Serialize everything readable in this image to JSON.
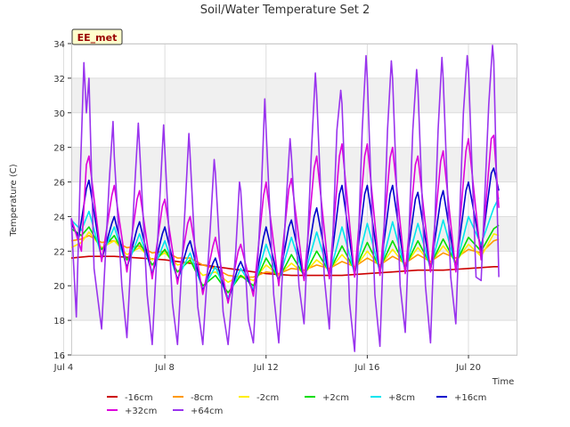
{
  "chart_data": {
    "type": "line",
    "title": "Soil/Water Temperature Set 2",
    "xlabel": "Time",
    "ylabel": "Temperature (C)",
    "station_label": "EE_met",
    "xlim": [
      4.3,
      21.9
    ],
    "ylim": [
      16,
      34
    ],
    "x_ticks": [
      {
        "value": 4,
        "label": "Jul 4"
      },
      {
        "value": 8,
        "label": "Jul 8"
      },
      {
        "value": 12,
        "label": "Jul 12"
      },
      {
        "value": 16,
        "label": "Jul 16"
      },
      {
        "value": 20,
        "label": "Jul 20"
      }
    ],
    "y_ticks": [
      16,
      18,
      20,
      22,
      24,
      26,
      28,
      30,
      32,
      34
    ],
    "grid": true,
    "legend_position": "bottom",
    "series": [
      {
        "name": "-16cm",
        "color": "#cc0000",
        "x": [
          4.3,
          5,
          6,
          7,
          8,
          9,
          10,
          11,
          12,
          13,
          14,
          15,
          16,
          17,
          18,
          19,
          20,
          21,
          21.2
        ],
        "y": [
          21.6,
          21.7,
          21.7,
          21.6,
          21.5,
          21.3,
          21.1,
          20.9,
          20.7,
          20.6,
          20.6,
          20.6,
          20.7,
          20.8,
          20.9,
          20.9,
          21.0,
          21.1,
          21.1
        ]
      },
      {
        "name": "-8cm",
        "color": "#ff9900",
        "x": [
          4.3,
          4.7,
          5.0,
          5.5,
          6.0,
          6.5,
          7.0,
          7.5,
          8.0,
          8.5,
          9.0,
          9.5,
          10.0,
          10.5,
          11.0,
          11.5,
          12.0,
          12.5,
          13.0,
          13.5,
          14.0,
          14.5,
          15.0,
          15.5,
          16.0,
          16.5,
          17.0,
          17.5,
          18.0,
          18.5,
          19.0,
          19.5,
          20.0,
          20.5,
          21.0,
          21.2
        ],
        "y": [
          22.6,
          22.7,
          22.9,
          22.5,
          22.6,
          22.2,
          22.3,
          21.9,
          22.0,
          21.6,
          21.6,
          21.2,
          21.0,
          20.6,
          20.5,
          20.5,
          20.8,
          20.7,
          21.0,
          20.9,
          21.2,
          21.0,
          21.4,
          21.1,
          21.6,
          21.2,
          21.7,
          21.3,
          21.8,
          21.4,
          21.9,
          21.6,
          22.1,
          21.9,
          22.6,
          22.7
        ]
      },
      {
        "name": "-2cm",
        "color": "#ffee00",
        "x": [
          4.3,
          4.7,
          5.0,
          5.5,
          6.0,
          6.5,
          7.0,
          7.5,
          8.0,
          8.5,
          9.0,
          9.5,
          10.0,
          10.5,
          11.0,
          11.5,
          12.0,
          12.5,
          13.0,
          13.5,
          14.0,
          14.5,
          15.0,
          15.5,
          16.0,
          16.5,
          17.0,
          17.5,
          18.0,
          18.5,
          19.0,
          19.5,
          20.0,
          20.5,
          21.0,
          21.2
        ],
        "y": [
          22.2,
          22.5,
          23.1,
          22.2,
          22.6,
          21.8,
          22.2,
          21.5,
          21.9,
          21.2,
          21.4,
          20.6,
          20.8,
          20.2,
          20.6,
          20.3,
          21.2,
          20.6,
          21.3,
          20.7,
          21.5,
          20.9,
          21.8,
          21.0,
          22.0,
          21.1,
          22.1,
          21.2,
          22.2,
          21.3,
          22.3,
          21.4,
          22.4,
          21.7,
          23.0,
          22.9
        ]
      },
      {
        "name": "+2cm",
        "color": "#00dd00",
        "x": [
          4.3,
          4.7,
          5.0,
          5.5,
          6.0,
          6.5,
          7.0,
          7.5,
          8.0,
          8.5,
          9.0,
          9.5,
          10.0,
          10.5,
          11.0,
          11.5,
          12.0,
          12.5,
          13.0,
          13.5,
          14.0,
          14.5,
          15.0,
          15.5,
          16.0,
          16.5,
          17.0,
          17.5,
          18.0,
          18.5,
          19.0,
          19.5,
          20.0,
          20.5,
          21.0,
          21.2
        ],
        "y": [
          23.3,
          22.9,
          23.4,
          22.1,
          22.9,
          21.5,
          22.5,
          21.2,
          22.1,
          20.8,
          21.5,
          20.0,
          20.6,
          19.6,
          20.6,
          20.0,
          21.6,
          20.4,
          21.8,
          20.6,
          22.0,
          20.8,
          22.3,
          20.9,
          22.5,
          21.0,
          22.6,
          21.1,
          22.6,
          21.2,
          22.7,
          21.3,
          22.8,
          22.0,
          23.3,
          23.5
        ]
      },
      {
        "name": "+8cm",
        "color": "#00e5ee",
        "x": [
          4.3,
          4.7,
          5.0,
          5.5,
          6.0,
          6.5,
          7.0,
          7.5,
          8.0,
          8.5,
          9.0,
          9.5,
          10.0,
          10.5,
          11.0,
          11.5,
          12.0,
          12.5,
          13.0,
          13.5,
          14.0,
          14.5,
          15.0,
          15.5,
          16.0,
          16.5,
          17.0,
          17.5,
          18.0,
          18.5,
          19.0,
          19.5,
          20.0,
          20.5,
          21.0,
          21.2
        ],
        "y": [
          23.8,
          23.2,
          24.3,
          21.7,
          23.4,
          21.1,
          23.0,
          20.8,
          22.6,
          20.4,
          21.9,
          19.8,
          21.1,
          19.3,
          21.0,
          19.8,
          22.4,
          20.3,
          22.8,
          20.5,
          23.1,
          20.6,
          23.4,
          20.7,
          23.6,
          20.8,
          23.7,
          20.9,
          23.6,
          21.0,
          23.8,
          21.1,
          24.0,
          22.4,
          24.5,
          25.1
        ]
      },
      {
        "name": "+16cm",
        "color": "#0000cc",
        "x": [
          4.3,
          4.6,
          4.9,
          5.0,
          5.5,
          5.9,
          6.0,
          6.5,
          6.9,
          7.0,
          7.5,
          7.9,
          8.0,
          8.5,
          8.9,
          9.0,
          9.5,
          9.9,
          10.0,
          10.5,
          10.9,
          11.0,
          11.5,
          11.9,
          12.0,
          12.5,
          12.9,
          13.0,
          13.5,
          13.9,
          14.0,
          14.5,
          14.9,
          15.0,
          15.5,
          15.9,
          16.0,
          16.5,
          16.9,
          17.0,
          17.5,
          17.9,
          18.0,
          18.5,
          18.9,
          19.0,
          19.5,
          19.9,
          20.0,
          20.5,
          20.9,
          21.0,
          21.2
        ],
        "y": [
          23.6,
          22.8,
          25.6,
          26.1,
          21.5,
          23.6,
          24.0,
          21.0,
          23.3,
          23.7,
          20.6,
          23.0,
          23.4,
          20.3,
          22.3,
          22.6,
          19.7,
          21.3,
          21.6,
          19.1,
          21.1,
          21.4,
          19.6,
          22.8,
          23.4,
          20.2,
          23.4,
          23.8,
          20.4,
          24.0,
          24.5,
          20.5,
          25.3,
          25.8,
          20.6,
          25.3,
          25.8,
          20.7,
          25.3,
          25.8,
          20.8,
          25.0,
          25.4,
          20.9,
          25.0,
          25.5,
          21.0,
          25.5,
          26.0,
          22.0,
          26.5,
          26.8,
          25.5
        ]
      },
      {
        "name": "+32cm",
        "color": "#dd00dd",
        "x": [
          4.3,
          4.7,
          4.9,
          5.0,
          5.5,
          5.9,
          6.0,
          6.5,
          6.9,
          7.0,
          7.5,
          7.9,
          8.0,
          8.5,
          8.9,
          9.0,
          9.5,
          9.9,
          10.0,
          10.5,
          10.9,
          11.0,
          11.5,
          11.9,
          12.0,
          12.5,
          12.9,
          13.0,
          13.5,
          13.9,
          14.0,
          14.5,
          14.9,
          15.0,
          15.5,
          15.9,
          16.0,
          16.5,
          16.9,
          17.0,
          17.5,
          17.9,
          18.0,
          18.5,
          18.9,
          19.0,
          19.5,
          19.9,
          20.0,
          20.5,
          20.9,
          21.0,
          21.2
        ],
        "y": [
          23.9,
          22.0,
          27.0,
          27.5,
          21.4,
          25.2,
          25.8,
          20.8,
          25.0,
          25.5,
          20.4,
          24.6,
          25.0,
          20.1,
          23.6,
          24.0,
          19.5,
          22.3,
          22.8,
          19.0,
          22.0,
          22.4,
          19.4,
          25.2,
          26.0,
          20.0,
          25.6,
          26.2,
          20.3,
          26.8,
          27.5,
          20.4,
          27.5,
          28.2,
          20.5,
          27.5,
          28.2,
          20.6,
          27.4,
          28.0,
          20.7,
          27.0,
          27.5,
          20.8,
          27.2,
          27.8,
          20.8,
          27.8,
          28.5,
          21.5,
          28.5,
          28.7,
          24.5
        ]
      },
      {
        "name": "+64cm",
        "color": "#9933ee",
        "x": [
          4.3,
          4.5,
          4.65,
          4.8,
          4.9,
          5.0,
          5.2,
          5.5,
          5.8,
          5.95,
          6.0,
          6.3,
          6.5,
          6.8,
          6.95,
          7.0,
          7.3,
          7.5,
          7.8,
          7.95,
          8.0,
          8.3,
          8.5,
          8.8,
          8.95,
          9.0,
          9.3,
          9.5,
          9.8,
          9.95,
          10.0,
          10.3,
          10.5,
          10.8,
          10.95,
          11.0,
          11.3,
          11.5,
          11.8,
          11.95,
          12.0,
          12.3,
          12.5,
          12.8,
          12.95,
          13.0,
          13.3,
          13.5,
          13.8,
          13.95,
          14.0,
          14.3,
          14.5,
          14.8,
          14.95,
          15.0,
          15.3,
          15.5,
          15.8,
          15.95,
          16.0,
          16.3,
          16.5,
          16.8,
          16.95,
          17.0,
          17.3,
          17.5,
          17.8,
          17.95,
          18.0,
          18.3,
          18.5,
          18.8,
          18.95,
          19.0,
          19.3,
          19.5,
          19.8,
          19.95,
          20.0,
          20.3,
          20.5,
          20.8,
          20.95,
          21.0,
          21.2
        ],
        "y": [
          23.9,
          18.2,
          26.0,
          32.9,
          30.0,
          32.0,
          21.0,
          17.5,
          26.0,
          29.5,
          27.5,
          20.0,
          17.0,
          25.5,
          29.4,
          28.0,
          19.5,
          16.6,
          25.0,
          29.3,
          27.8,
          19.0,
          16.6,
          24.5,
          28.8,
          27.5,
          18.8,
          16.6,
          23.5,
          27.3,
          26.5,
          18.5,
          16.6,
          22.0,
          26.0,
          25.5,
          18.0,
          16.7,
          25.0,
          30.8,
          29.0,
          19.5,
          16.7,
          25.0,
          28.5,
          27.5,
          20.0,
          17.8,
          28.0,
          32.3,
          31.0,
          20.5,
          17.5,
          29.0,
          31.3,
          30.5,
          19.0,
          16.2,
          29.0,
          33.3,
          32.0,
          19.5,
          16.5,
          29.0,
          33.0,
          32.0,
          20.0,
          17.3,
          29.0,
          32.5,
          31.5,
          20.0,
          16.7,
          29.0,
          33.2,
          32.0,
          20.5,
          17.8,
          30.0,
          33.3,
          32.5,
          20.5,
          20.3,
          30.5,
          33.9,
          33.0,
          20.5
        ]
      }
    ]
  }
}
